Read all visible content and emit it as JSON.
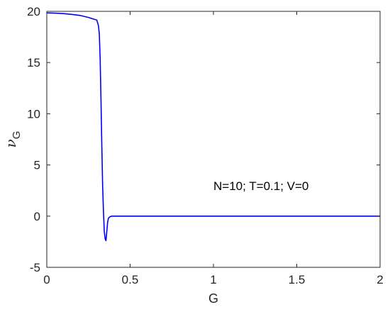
{
  "chart_data": {
    "type": "line",
    "title": "",
    "xlabel": "G",
    "ylabel_main": "ν",
    "ylabel_sub": "G",
    "xlim": [
      0,
      2
    ],
    "ylim": [
      -5,
      20
    ],
    "x_ticks": [
      0,
      0.5,
      1,
      1.5,
      2
    ],
    "x_tick_labels": [
      "0",
      "0.5",
      "1",
      "1.5",
      "2"
    ],
    "y_ticks": [
      -5,
      0,
      5,
      10,
      15,
      20
    ],
    "y_tick_labels": [
      "-5",
      "0",
      "5",
      "10",
      "15",
      "20"
    ],
    "grid": false,
    "annotation": "N=10; T=0.1; V=0",
    "series": [
      {
        "color": "#0000ff",
        "x": [
          0,
          0.05,
          0.1,
          0.15,
          0.2,
          0.25,
          0.28,
          0.3,
          0.31,
          0.315,
          0.32,
          0.325,
          0.33,
          0.335,
          0.34,
          0.345,
          0.35,
          0.355,
          0.36,
          0.365,
          0.37,
          0.38,
          0.39,
          0.4,
          0.45,
          0.5,
          0.7,
          1,
          1.5,
          2
        ],
        "y": [
          19.85,
          19.82,
          19.78,
          19.7,
          19.6,
          19.4,
          19.25,
          19.15,
          18.6,
          17.8,
          15.5,
          11.5,
          7.0,
          3.0,
          0.5,
          -1.5,
          -2.2,
          -2.4,
          -1.5,
          -0.6,
          -0.2,
          -0.05,
          0,
          0,
          0,
          0,
          0,
          0,
          0,
          0
        ]
      }
    ]
  }
}
